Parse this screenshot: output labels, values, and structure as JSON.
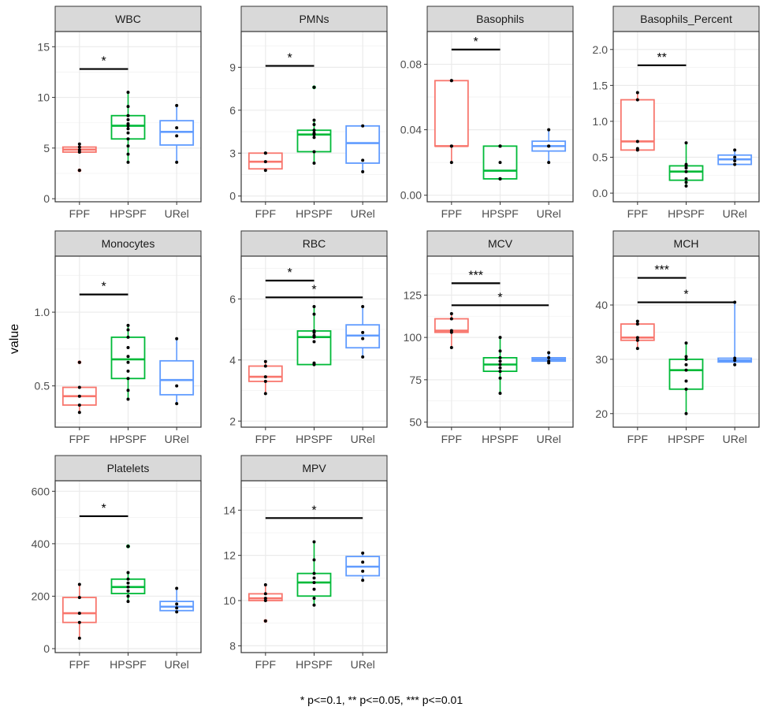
{
  "figure": {
    "ylabel": "value",
    "footnote": "* p<=0.1, ** p<=0.05, *** p<=0.01",
    "group_colors": {
      "FPF": "#F8766D",
      "HPSPF": "#00BA38",
      "URel": "#619CFF"
    }
  },
  "chart_data": [
    {
      "type": "box",
      "title": "WBC",
      "categories": [
        "FPF",
        "HPSPF",
        "URel"
      ],
      "ylim": [
        -0.3,
        16.5
      ],
      "yticks": [
        "0",
        "5",
        "10",
        "15"
      ],
      "ytick_values": [
        0,
        5,
        10,
        15
      ],
      "boxes": [
        {
          "group": "FPF",
          "min": 4.5,
          "q1": 4.6,
          "median": 4.85,
          "q3": 5.1,
          "max": 5.4,
          "outliers": [
            2.8
          ],
          "points": [
            2.8,
            4.6,
            4.8,
            5.1,
            5.4
          ]
        },
        {
          "group": "HPSPF",
          "min": 3.6,
          "q1": 5.9,
          "median": 7.2,
          "q3": 8.2,
          "max": 10.5,
          "outliers": [],
          "points": [
            3.6,
            4.4,
            5.2,
            5.9,
            6.5,
            6.9,
            7.2,
            7.4,
            7.8,
            8.2,
            9.1,
            10.5
          ]
        },
        {
          "group": "URel",
          "min": 3.6,
          "q1": 5.3,
          "median": 6.6,
          "q3": 7.7,
          "max": 9.2,
          "outliers": [],
          "points": [
            3.6,
            6.2,
            7.0,
            9.2
          ]
        }
      ],
      "brackets": [
        {
          "from": "FPF",
          "to": "HPSPF",
          "y": 12.8,
          "label": "*"
        }
      ]
    },
    {
      "type": "box",
      "title": "PMNs",
      "categories": [
        "FPF",
        "HPSPF",
        "URel"
      ],
      "ylim": [
        -0.4,
        11.5
      ],
      "yticks": [
        "0",
        "3",
        "6",
        "9"
      ],
      "ytick_values": [
        0,
        3,
        6,
        9
      ],
      "boxes": [
        {
          "group": "FPF",
          "min": 1.8,
          "q1": 1.9,
          "median": 2.4,
          "q3": 3.0,
          "max": 3.0,
          "outliers": [],
          "points": [
            1.8,
            2.4,
            3.0,
            3.0
          ]
        },
        {
          "group": "HPSPF",
          "min": 2.3,
          "q1": 3.1,
          "median": 4.3,
          "q3": 4.6,
          "max": 5.3,
          "outliers": [
            7.6
          ],
          "points": [
            2.3,
            3.1,
            4.1,
            4.3,
            4.4,
            4.6,
            5.0,
            5.3,
            7.6
          ]
        },
        {
          "group": "URel",
          "min": 1.7,
          "q1": 2.3,
          "median": 3.7,
          "q3": 4.9,
          "max": 4.9,
          "outliers": [],
          "points": [
            1.7,
            2.5,
            4.9
          ]
        }
      ],
      "brackets": [
        {
          "from": "FPF",
          "to": "HPSPF",
          "y": 9.1,
          "label": "*"
        }
      ]
    },
    {
      "type": "box",
      "title": "Basophils",
      "categories": [
        "FPF",
        "HPSPF",
        "URel"
      ],
      "ylim": [
        -0.004,
        0.1
      ],
      "yticks": [
        "0.00",
        "0.04",
        "0.08"
      ],
      "ytick_values": [
        0,
        0.04,
        0.08
      ],
      "boxes": [
        {
          "group": "FPF",
          "min": 0.02,
          "q1": 0.03,
          "median": 0.03,
          "q3": 0.07,
          "max": 0.07,
          "outliers": [],
          "points": [
            0.02,
            0.03,
            0.03,
            0.07,
            0.07
          ]
        },
        {
          "group": "HPSPF",
          "min": 0.01,
          "q1": 0.01,
          "median": 0.015,
          "q3": 0.03,
          "max": 0.03,
          "outliers": [],
          "points": [
            0.01,
            0.01,
            0.01,
            0.02,
            0.03,
            0.03,
            0.03
          ]
        },
        {
          "group": "URel",
          "min": 0.02,
          "q1": 0.027,
          "median": 0.03,
          "q3": 0.033,
          "max": 0.04,
          "outliers": [],
          "points": [
            0.02,
            0.03,
            0.03,
            0.04
          ]
        }
      ],
      "brackets": [
        {
          "from": "FPF",
          "to": "HPSPF",
          "y": 0.089,
          "label": "*"
        }
      ]
    },
    {
      "type": "box",
      "title": "Basophils_Percent",
      "categories": [
        "FPF",
        "HPSPF",
        "URel"
      ],
      "ylim": [
        -0.12,
        2.25
      ],
      "yticks": [
        "0.0",
        "0.5",
        "1.0",
        "1.5",
        "2.0"
      ],
      "ytick_values": [
        0,
        0.5,
        1.0,
        1.5,
        2.0
      ],
      "boxes": [
        {
          "group": "FPF",
          "min": 0.6,
          "q1": 0.6,
          "median": 0.72,
          "q3": 1.3,
          "max": 1.4,
          "outliers": [],
          "points": [
            0.6,
            0.62,
            0.72,
            1.3,
            1.4
          ]
        },
        {
          "group": "HPSPF",
          "min": 0.1,
          "q1": 0.18,
          "median": 0.3,
          "q3": 0.38,
          "max": 0.7,
          "outliers": [],
          "points": [
            0.1,
            0.15,
            0.2,
            0.3,
            0.35,
            0.38,
            0.4,
            0.7
          ]
        },
        {
          "group": "URel",
          "min": 0.4,
          "q1": 0.4,
          "median": 0.47,
          "q3": 0.53,
          "max": 0.6,
          "outliers": [],
          "points": [
            0.4,
            0.45,
            0.5,
            0.6
          ]
        }
      ],
      "brackets": [
        {
          "from": "FPF",
          "to": "HPSPF",
          "y": 1.78,
          "label": "**"
        }
      ]
    },
    {
      "type": "box",
      "title": "Monocytes",
      "categories": [
        "FPF",
        "HPSPF",
        "URel"
      ],
      "ylim": [
        0.22,
        1.38
      ],
      "yticks": [
        "0.5",
        "1.0"
      ],
      "ytick_values": [
        0.5,
        1.0
      ],
      "boxes": [
        {
          "group": "FPF",
          "min": 0.32,
          "q1": 0.37,
          "median": 0.43,
          "q3": 0.49,
          "max": 0.49,
          "outliers": [
            0.66
          ],
          "points": [
            0.32,
            0.37,
            0.43,
            0.49,
            0.66
          ]
        },
        {
          "group": "HPSPF",
          "min": 0.41,
          "q1": 0.55,
          "median": 0.68,
          "q3": 0.83,
          "max": 0.91,
          "outliers": [],
          "points": [
            0.41,
            0.47,
            0.55,
            0.6,
            0.66,
            0.7,
            0.76,
            0.83,
            0.88,
            0.91
          ]
        },
        {
          "group": "URel",
          "min": 0.38,
          "q1": 0.44,
          "median": 0.54,
          "q3": 0.67,
          "max": 0.82,
          "outliers": [],
          "points": [
            0.38,
            0.5,
            0.82
          ]
        }
      ],
      "brackets": [
        {
          "from": "FPF",
          "to": "HPSPF",
          "y": 1.12,
          "label": "*"
        }
      ]
    },
    {
      "type": "box",
      "title": "RBC",
      "categories": [
        "FPF",
        "HPSPF",
        "URel"
      ],
      "ylim": [
        1.8,
        7.4
      ],
      "yticks": [
        "2",
        "4",
        "6"
      ],
      "ytick_values": [
        2,
        4,
        6
      ],
      "boxes": [
        {
          "group": "FPF",
          "min": 2.9,
          "q1": 3.3,
          "median": 3.45,
          "q3": 3.8,
          "max": 3.95,
          "outliers": [],
          "points": [
            2.9,
            3.3,
            3.45,
            3.8,
            3.95
          ]
        },
        {
          "group": "HPSPF",
          "min": 3.85,
          "q1": 3.85,
          "median": 4.75,
          "q3": 4.95,
          "max": 5.75,
          "outliers": [],
          "points": [
            3.85,
            3.9,
            4.6,
            4.75,
            4.8,
            4.9,
            4.95,
            5.5,
            5.75
          ]
        },
        {
          "group": "URel",
          "min": 4.1,
          "q1": 4.4,
          "median": 4.8,
          "q3": 5.15,
          "max": 5.75,
          "outliers": [],
          "points": [
            4.1,
            4.7,
            4.9,
            5.75
          ]
        }
      ],
      "brackets": [
        {
          "from": "FPF",
          "to": "HPSPF",
          "y": 6.6,
          "label": "*"
        },
        {
          "from": "FPF",
          "to": "URel",
          "y": 6.05,
          "label": "*"
        }
      ]
    },
    {
      "type": "box",
      "title": "MCV",
      "categories": [
        "FPF",
        "HPSPF",
        "URel"
      ],
      "ylim": [
        47,
        148
      ],
      "yticks": [
        "50",
        "75",
        "100",
        "125"
      ],
      "ytick_values": [
        50,
        75,
        100,
        125
      ],
      "boxes": [
        {
          "group": "FPF",
          "min": 94,
          "q1": 103,
          "median": 104,
          "q3": 111,
          "max": 114,
          "outliers": [],
          "points": [
            94,
            103,
            104,
            111,
            114
          ]
        },
        {
          "group": "HPSPF",
          "min": 67,
          "q1": 80,
          "median": 84,
          "q3": 88,
          "max": 100,
          "outliers": [],
          "points": [
            67,
            76,
            80,
            82,
            84,
            86,
            88,
            92,
            100
          ]
        },
        {
          "group": "URel",
          "min": 85,
          "q1": 86,
          "median": 87,
          "q3": 88,
          "max": 91,
          "outliers": [],
          "points": [
            85,
            86,
            88,
            91
          ]
        }
      ],
      "brackets": [
        {
          "from": "FPF",
          "to": "HPSPF",
          "y": 132,
          "label": "***"
        },
        {
          "from": "FPF",
          "to": "URel",
          "y": 119,
          "label": "*"
        }
      ]
    },
    {
      "type": "box",
      "title": "MCH",
      "categories": [
        "FPF",
        "HPSPF",
        "URel"
      ],
      "ylim": [
        17.5,
        49
      ],
      "yticks": [
        "20",
        "30",
        "40"
      ],
      "ytick_values": [
        20,
        30,
        40
      ],
      "boxes": [
        {
          "group": "FPF",
          "min": 32,
          "q1": 33.5,
          "median": 34,
          "q3": 36.5,
          "max": 37,
          "outliers": [],
          "points": [
            32,
            33.5,
            34,
            36.5,
            37
          ]
        },
        {
          "group": "HPSPF",
          "min": 20,
          "q1": 24.5,
          "median": 28,
          "q3": 30,
          "max": 33,
          "outliers": [],
          "points": [
            20,
            24.5,
            26,
            28,
            29,
            30,
            30.5,
            33
          ]
        },
        {
          "group": "URel",
          "min": 29,
          "q1": 29.5,
          "median": 29.8,
          "q3": 30.2,
          "max": 40.5,
          "outliers": [],
          "points": [
            29,
            29.8,
            30.2,
            40.5
          ]
        }
      ],
      "brackets": [
        {
          "from": "FPF",
          "to": "HPSPF",
          "y": 45,
          "label": "***"
        },
        {
          "from": "FPF",
          "to": "URel",
          "y": 40.5,
          "label": "*"
        }
      ]
    },
    {
      "type": "box",
      "title": "Platelets",
      "categories": [
        "FPF",
        "HPSPF",
        "URel"
      ],
      "ylim": [
        -15,
        640
      ],
      "yticks": [
        "0",
        "200",
        "400",
        "600"
      ],
      "ytick_values": [
        0,
        200,
        400,
        600
      ],
      "boxes": [
        {
          "group": "FPF",
          "min": 40,
          "q1": 100,
          "median": 135,
          "q3": 195,
          "max": 245,
          "outliers": [],
          "points": [
            40,
            100,
            135,
            195,
            245
          ]
        },
        {
          "group": "HPSPF",
          "min": 180,
          "q1": 210,
          "median": 235,
          "q3": 265,
          "max": 290,
          "outliers": [
            390,
            390
          ],
          "points": [
            180,
            200,
            220,
            235,
            250,
            265,
            290,
            390,
            390
          ]
        },
        {
          "group": "URel",
          "min": 140,
          "q1": 145,
          "median": 160,
          "q3": 180,
          "max": 230,
          "outliers": [],
          "points": [
            140,
            155,
            170,
            230
          ]
        }
      ],
      "brackets": [
        {
          "from": "FPF",
          "to": "HPSPF",
          "y": 505,
          "label": "*"
        }
      ]
    },
    {
      "type": "box",
      "title": "MPV",
      "categories": [
        "FPF",
        "HPSPF",
        "URel"
      ],
      "ylim": [
        7.7,
        15.3
      ],
      "yticks": [
        "8",
        "10",
        "12",
        "14"
      ],
      "ytick_values": [
        8,
        10,
        12,
        14
      ],
      "boxes": [
        {
          "group": "FPF",
          "min": 10.0,
          "q1": 10.0,
          "median": 10.1,
          "q3": 10.3,
          "max": 10.7,
          "outliers": [
            9.1
          ],
          "points": [
            9.1,
            10.0,
            10.1,
            10.3,
            10.7
          ]
        },
        {
          "group": "HPSPF",
          "min": 9.8,
          "q1": 10.2,
          "median": 10.8,
          "q3": 11.2,
          "max": 12.6,
          "outliers": [],
          "points": [
            9.8,
            10.1,
            10.5,
            10.8,
            11.0,
            11.2,
            11.8,
            12.6
          ]
        },
        {
          "group": "URel",
          "min": 10.9,
          "q1": 11.1,
          "median": 11.5,
          "q3": 11.95,
          "max": 12.1,
          "outliers": [],
          "points": [
            10.9,
            11.3,
            11.7,
            12.1
          ]
        }
      ],
      "brackets": [
        {
          "from": "FPF",
          "to": "URel",
          "y": 13.65,
          "label": "*"
        }
      ]
    }
  ]
}
